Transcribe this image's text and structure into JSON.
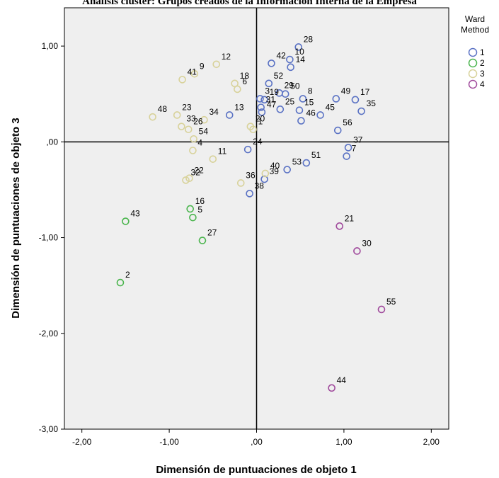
{
  "top_title": "Análisis clúster: Grupos creados de la Información Interna de la Empresa",
  "chart_data": {
    "type": "scatter",
    "xlabel": "Dimensión de puntuaciones de objeto 1",
    "ylabel": "Dimensión de puntuaciones de objeto 3",
    "xlim": [
      -2.2,
      2.2
    ],
    "ylim": [
      -3.0,
      1.4
    ],
    "x_ticks": [
      "-2,00",
      "-1,00",
      ",00",
      "1,00",
      "2,00"
    ],
    "y_ticks": [
      "1,00",
      ",00",
      "-1,00",
      "-2,00",
      "-3,00"
    ],
    "reference_lines": {
      "x": 0,
      "y": 0
    },
    "legend": {
      "title_line1": "Ward",
      "title_line2": "Method",
      "position": "top-right"
    },
    "series": [
      {
        "name": "1",
        "color": "#5a72c4",
        "points": [
          {
            "x": 0.48,
            "y": 0.99,
            "label": "28"
          },
          {
            "x": 0.38,
            "y": 0.86,
            "label": "10"
          },
          {
            "x": 0.17,
            "y": 0.82,
            "label": "42"
          },
          {
            "x": 0.39,
            "y": 0.78,
            "label": "14"
          },
          {
            "x": 0.14,
            "y": 0.61,
            "label": "52"
          },
          {
            "x": 0.26,
            "y": 0.51,
            "label": "29"
          },
          {
            "x": 0.33,
            "y": 0.5,
            "label": "50"
          },
          {
            "x": 0.53,
            "y": 0.45,
            "label": "8"
          },
          {
            "x": 0.04,
            "y": 0.45,
            "label": "3"
          },
          {
            "x": 0.09,
            "y": 0.44,
            "label": "19"
          },
          {
            "x": 0.91,
            "y": 0.45,
            "label": "49"
          },
          {
            "x": 1.13,
            "y": 0.44,
            "label": "17"
          },
          {
            "x": 0.05,
            "y": 0.36,
            "label": "31"
          },
          {
            "x": 0.27,
            "y": 0.34,
            "label": "25"
          },
          {
            "x": 0.49,
            "y": 0.33,
            "label": "15"
          },
          {
            "x": 1.2,
            "y": 0.32,
            "label": "35"
          },
          {
            "x": 0.06,
            "y": 0.31,
            "label": "47"
          },
          {
            "x": -0.31,
            "y": 0.28,
            "label": "13"
          },
          {
            "x": 0.73,
            "y": 0.28,
            "label": "45"
          },
          {
            "x": 0.51,
            "y": 0.22,
            "label": "46"
          },
          {
            "x": 0.93,
            "y": 0.12,
            "label": "56"
          },
          {
            "x": 1.05,
            "y": -0.06,
            "label": "37"
          },
          {
            "x": -0.1,
            "y": -0.08,
            "label": "24"
          },
          {
            "x": 1.03,
            "y": -0.15,
            "label": "7"
          },
          {
            "x": 0.57,
            "y": -0.22,
            "label": "51"
          },
          {
            "x": 0.35,
            "y": -0.29,
            "label": "53"
          },
          {
            "x": 0.09,
            "y": -0.39,
            "label": "39"
          },
          {
            "x": -0.08,
            "y": -0.54,
            "label": "38"
          }
        ]
      },
      {
        "name": "2",
        "color": "#4bb54e",
        "points": [
          {
            "x": -0.76,
            "y": -0.7,
            "label": "16"
          },
          {
            "x": -0.73,
            "y": -0.79,
            "label": "5"
          },
          {
            "x": -1.5,
            "y": -0.83,
            "label": "43"
          },
          {
            "x": -0.62,
            "y": -1.03,
            "label": "27"
          },
          {
            "x": -1.56,
            "y": -1.47,
            "label": "2"
          }
        ]
      },
      {
        "name": "3",
        "color": "#d8d29a",
        "points": [
          {
            "x": -0.46,
            "y": 0.81,
            "label": "12"
          },
          {
            "x": -0.71,
            "y": 0.71,
            "label": "9"
          },
          {
            "x": -0.85,
            "y": 0.65,
            "label": "41"
          },
          {
            "x": -0.25,
            "y": 0.61,
            "label": "18"
          },
          {
            "x": -0.22,
            "y": 0.55,
            "label": "6"
          },
          {
            "x": -0.91,
            "y": 0.28,
            "label": "23"
          },
          {
            "x": -1.19,
            "y": 0.26,
            "label": "48"
          },
          {
            "x": -0.6,
            "y": 0.23,
            "label": "34"
          },
          {
            "x": -0.86,
            "y": 0.16,
            "label": "33"
          },
          {
            "x": -0.78,
            "y": 0.13,
            "label": "26"
          },
          {
            "x": -0.07,
            "y": 0.16,
            "label": "20"
          },
          {
            "x": -0.04,
            "y": 0.13,
            "label": "1"
          },
          {
            "x": -0.72,
            "y": 0.03,
            "label": "54"
          },
          {
            "x": -0.73,
            "y": -0.09,
            "label": "4"
          },
          {
            "x": -0.5,
            "y": -0.18,
            "label": "11"
          },
          {
            "x": 0.1,
            "y": -0.33,
            "label": "40"
          },
          {
            "x": -0.77,
            "y": -0.38,
            "label": "22"
          },
          {
            "x": -0.81,
            "y": -0.4,
            "label": "32"
          },
          {
            "x": -0.18,
            "y": -0.43,
            "label": "36"
          }
        ]
      },
      {
        "name": "4",
        "color": "#a04a9c",
        "points": [
          {
            "x": 0.95,
            "y": -0.88,
            "label": "21"
          },
          {
            "x": 1.15,
            "y": -1.14,
            "label": "30"
          },
          {
            "x": 1.43,
            "y": -1.75,
            "label": "55"
          },
          {
            "x": 0.86,
            "y": -2.57,
            "label": "44"
          }
        ]
      }
    ]
  }
}
